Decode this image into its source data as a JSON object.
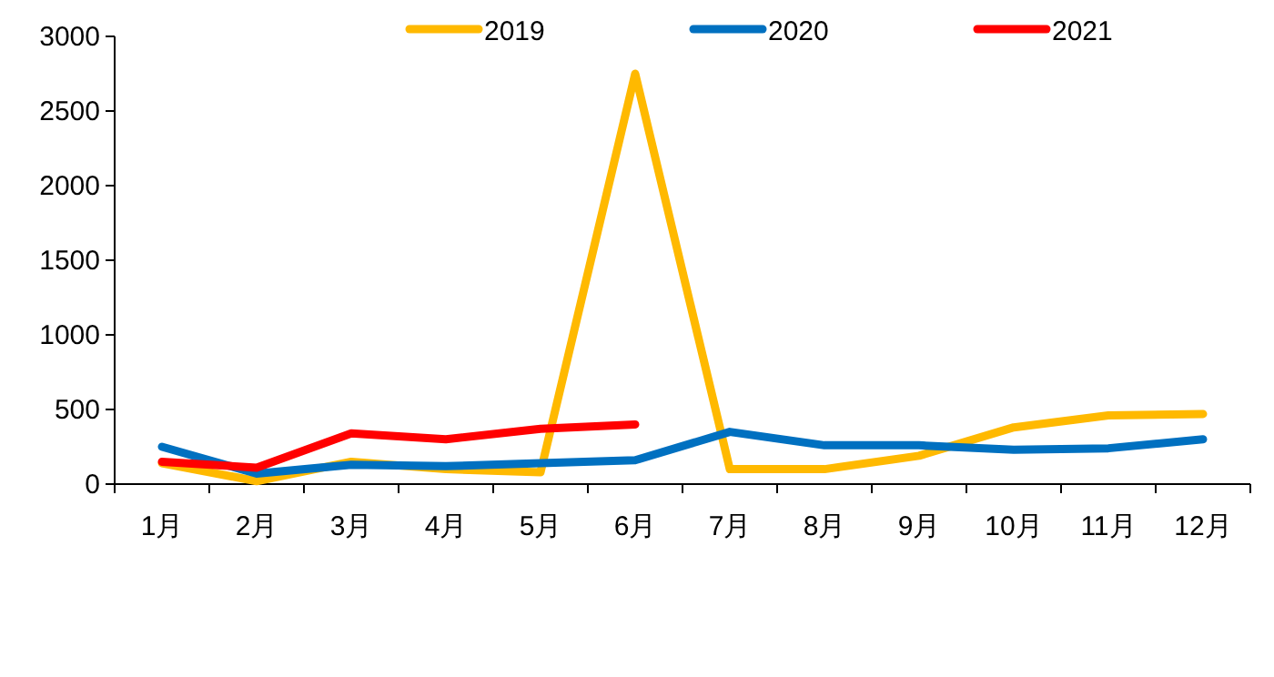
{
  "chart_data": {
    "type": "line",
    "categories": [
      "1月",
      "2月",
      "3月",
      "4月",
      "5月",
      "6月",
      "7月",
      "8月",
      "9月",
      "10月",
      "11月",
      "12月"
    ],
    "series": [
      {
        "name": "2019",
        "color": "#ffb900",
        "values": [
          140,
          20,
          150,
          100,
          80,
          2750,
          100,
          100,
          190,
          380,
          460,
          470
        ]
      },
      {
        "name": "2020",
        "color": "#0070c0",
        "values": [
          250,
          70,
          130,
          120,
          140,
          160,
          350,
          260,
          260,
          230,
          240,
          300
        ]
      },
      {
        "name": "2021",
        "color": "#ff0000",
        "values": [
          150,
          110,
          340,
          300,
          370,
          400,
          null,
          null,
          null,
          null,
          null,
          null
        ]
      }
    ],
    "ylim": [
      0,
      3000
    ],
    "yticks": [
      0,
      500,
      1000,
      1500,
      2000,
      2500,
      3000
    ],
    "legend": "top",
    "grid": false
  }
}
